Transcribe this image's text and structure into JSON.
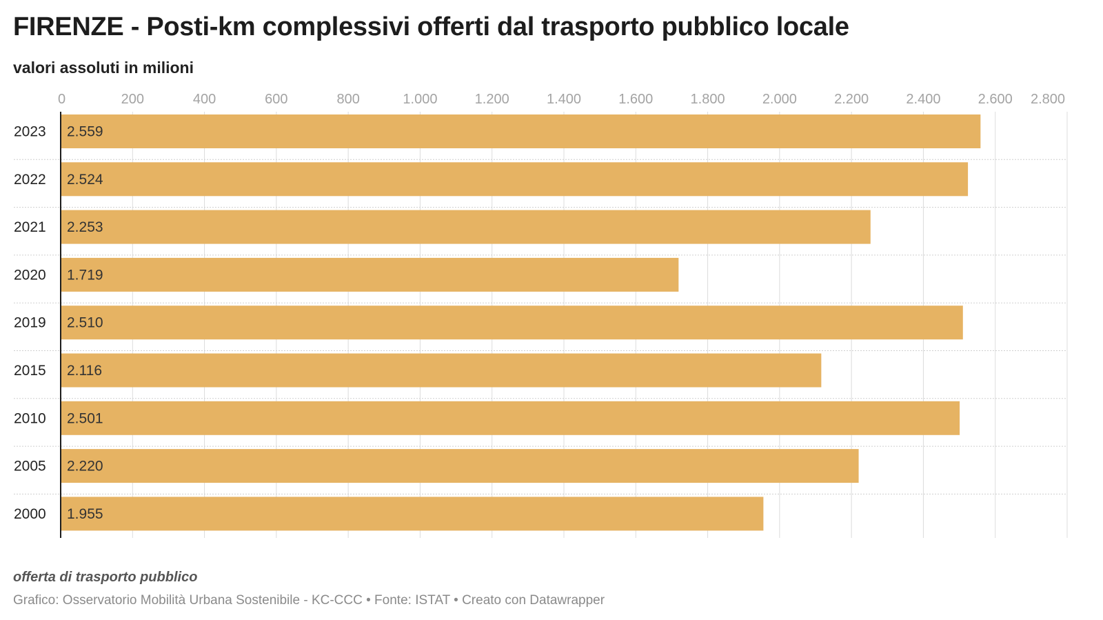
{
  "header": {
    "title": "FIRENZE - Posti-km complessivi offerti dal trasporto pubblico locale",
    "subtitle": "valori assoluti in milioni"
  },
  "footer": {
    "note": "offerta di trasporto pubblico",
    "credits": "Grafico: Osservatorio Mobilità Urbana Sostenibile - KC-CCC • Fonte: ISTAT • Creato con Datawrapper"
  },
  "chart_data": {
    "type": "bar",
    "orientation": "horizontal",
    "categories": [
      "2023",
      "2022",
      "2021",
      "2020",
      "2019",
      "2015",
      "2010",
      "2005",
      "2000"
    ],
    "values": [
      2559,
      2524,
      2253,
      1719,
      2510,
      2116,
      2501,
      2220,
      1955
    ],
    "value_labels": [
      "2.559",
      "2.524",
      "2.253",
      "1.719",
      "2.510",
      "2.116",
      "2.501",
      "2.220",
      "1.955"
    ],
    "xlim": [
      0,
      2800
    ],
    "ticks": [
      0,
      200,
      400,
      600,
      800,
      1000,
      1200,
      1400,
      1600,
      1800,
      2000,
      2200,
      2400,
      2600,
      2800
    ],
    "tick_labels": [
      "0",
      "200",
      "400",
      "600",
      "800",
      "1.000",
      "1.200",
      "1.400",
      "1.600",
      "1.800",
      "2.000",
      "2.200",
      "2.400",
      "2.600",
      "2.800"
    ],
    "axis_position": "top",
    "grid": true,
    "colors": {
      "bar": "#e6b363",
      "grid": "#dcdcdc",
      "axis": "#1d1d1d"
    }
  }
}
